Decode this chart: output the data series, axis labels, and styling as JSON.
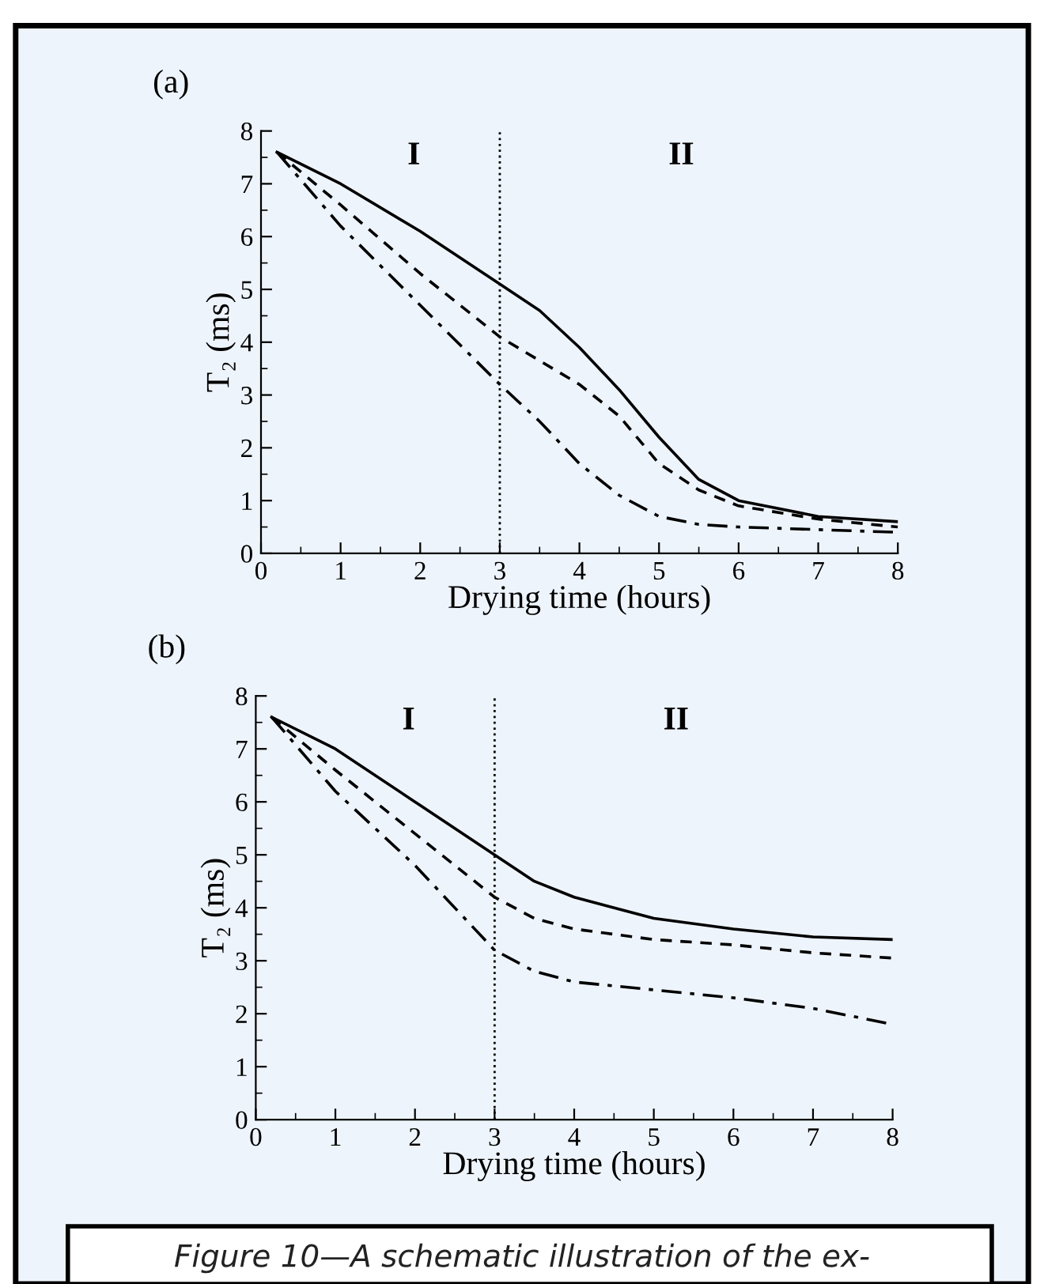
{
  "chart_data": [
    {
      "type": "line",
      "title": "(a)",
      "xlabel": "Drying time (hours)",
      "ylabel": "T₂ (ms)",
      "xlim": [
        0,
        8
      ],
      "ylim": [
        0,
        8
      ],
      "xticks": [
        0,
        1,
        2,
        3,
        4,
        5,
        6,
        7,
        8
      ],
      "yticks": [
        0,
        1,
        2,
        3,
        4,
        5,
        6,
        7,
        8
      ],
      "grid": false,
      "legend": false,
      "ref_lines": [
        {
          "axis": "x",
          "value": 3,
          "line_style": "dotted",
          "color": "#000000"
        }
      ],
      "annotations": [
        "I",
        "II"
      ],
      "series": [
        {
          "color": "#000000",
          "line_style": "solid",
          "x": [
            0.2,
            1,
            2,
            3,
            3.5,
            4,
            4.5,
            5,
            5.5,
            6,
            7,
            8
          ],
          "values": [
            7.6,
            7.0,
            6.1,
            5.1,
            4.6,
            3.9,
            3.1,
            2.2,
            1.4,
            1.0,
            0.7,
            0.6
          ]
        },
        {
          "color": "#000000",
          "line_style": "dashed",
          "x": [
            0.2,
            1,
            2,
            3,
            4,
            4.5,
            5,
            5.5,
            6,
            7,
            8
          ],
          "values": [
            7.6,
            6.6,
            5.3,
            4.1,
            3.2,
            2.6,
            1.7,
            1.2,
            0.9,
            0.65,
            0.5
          ]
        },
        {
          "color": "#000000",
          "line_style": "dashdot",
          "x": [
            0.2,
            1,
            2,
            3,
            3.5,
            4,
            4.5,
            5,
            5.5,
            6,
            7,
            8
          ],
          "values": [
            7.6,
            6.2,
            4.7,
            3.2,
            2.5,
            1.7,
            1.1,
            0.7,
            0.55,
            0.5,
            0.45,
            0.4
          ]
        }
      ]
    },
    {
      "type": "line",
      "title": "(b)",
      "xlabel": "Drying time (hours)",
      "ylabel": "T₂ (ms)",
      "xlim": [
        0,
        8
      ],
      "ylim": [
        0,
        8
      ],
      "xticks": [
        0,
        1,
        2,
        3,
        4,
        5,
        6,
        7,
        8
      ],
      "yticks": [
        0,
        1,
        2,
        3,
        4,
        5,
        6,
        7,
        8
      ],
      "grid": false,
      "legend": false,
      "ref_lines": [
        {
          "axis": "x",
          "value": 3,
          "line_style": "dotted",
          "color": "#000000"
        }
      ],
      "annotations": [
        "I",
        "II",
        "Figure 10—A schematic illustration of the ex-"
      ],
      "series": [
        {
          "color": "#000000",
          "line_style": "solid",
          "x": [
            0.2,
            1,
            2,
            3,
            3.5,
            4,
            5,
            6,
            7,
            8
          ],
          "values": [
            7.6,
            7.0,
            6.0,
            5.0,
            4.5,
            4.2,
            3.8,
            3.6,
            3.45,
            3.4
          ]
        },
        {
          "color": "#000000",
          "line_style": "dashed",
          "x": [
            0.2,
            1,
            2,
            3,
            3.5,
            4,
            5,
            6,
            7,
            8
          ],
          "values": [
            7.6,
            6.6,
            5.4,
            4.2,
            3.8,
            3.6,
            3.4,
            3.3,
            3.15,
            3.05
          ]
        },
        {
          "color": "#000000",
          "line_style": "dashdot",
          "x": [
            0.2,
            1,
            2,
            3,
            3.5,
            4,
            5,
            6,
            7,
            8
          ],
          "values": [
            7.6,
            6.2,
            4.8,
            3.2,
            2.8,
            2.6,
            2.45,
            2.3,
            2.1,
            1.8
          ]
        }
      ]
    }
  ]
}
